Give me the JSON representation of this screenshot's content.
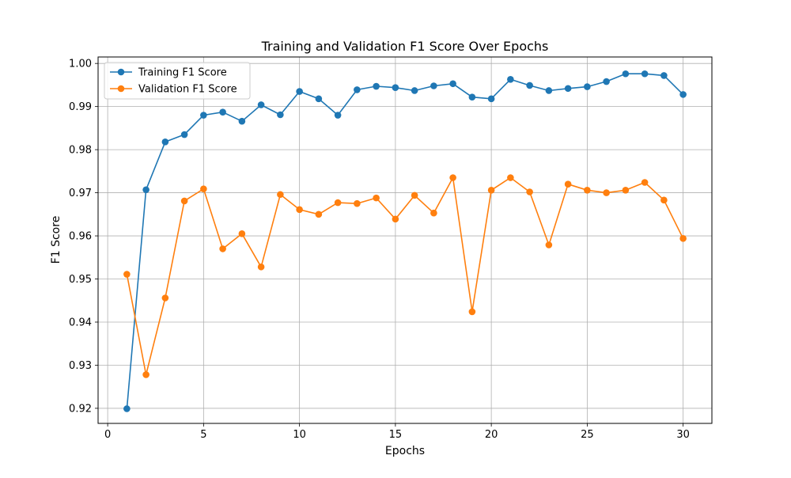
{
  "chart_data": {
    "type": "line",
    "title": "Training and Validation F1 Score Over Epochs",
    "xlabel": "Epochs",
    "ylabel": "F1 Score",
    "xlim": [
      -0.5,
      31.5
    ],
    "ylim": [
      0.9165,
      1.0015
    ],
    "xticks": [
      0,
      5,
      10,
      15,
      20,
      25,
      30
    ],
    "yticks": [
      0.92,
      0.93,
      0.94,
      0.95,
      0.96,
      0.97,
      0.98,
      0.99,
      1.0
    ],
    "ytick_labels": [
      "0.92",
      "0.93",
      "0.94",
      "0.95",
      "0.96",
      "0.97",
      "0.98",
      "0.99",
      "1.00"
    ],
    "grid": true,
    "legend_position": "top-left",
    "x": [
      1,
      2,
      3,
      4,
      5,
      6,
      7,
      8,
      9,
      10,
      11,
      12,
      13,
      14,
      15,
      16,
      17,
      18,
      19,
      20,
      21,
      22,
      23,
      24,
      25,
      26,
      27,
      28,
      29,
      30
    ],
    "series": [
      {
        "name": "Training F1 Score",
        "color": "#1f77b4",
        "marker": "circle",
        "values": [
          0.9199,
          0.9707,
          0.9818,
          0.9835,
          0.988,
          0.9887,
          0.9866,
          0.9904,
          0.9881,
          0.9935,
          0.9918,
          0.988,
          0.9939,
          0.9947,
          0.9944,
          0.9937,
          0.9948,
          0.9953,
          0.9922,
          0.9918,
          0.9963,
          0.9949,
          0.9937,
          0.9942,
          0.9946,
          0.9958,
          0.9976,
          0.9976,
          0.9972,
          0.9928
        ]
      },
      {
        "name": "Validation F1 Score",
        "color": "#ff7f0e",
        "marker": "circle",
        "values": [
          0.9511,
          0.9278,
          0.9456,
          0.9681,
          0.9709,
          0.957,
          0.9605,
          0.9528,
          0.9696,
          0.9661,
          0.965,
          0.9677,
          0.9675,
          0.9688,
          0.9639,
          0.9694,
          0.9653,
          0.9735,
          0.9424,
          0.9706,
          0.9735,
          0.9702,
          0.9579,
          0.972,
          0.9706,
          0.97,
          0.9706,
          0.9724,
          0.9683,
          0.9594
        ]
      }
    ]
  }
}
